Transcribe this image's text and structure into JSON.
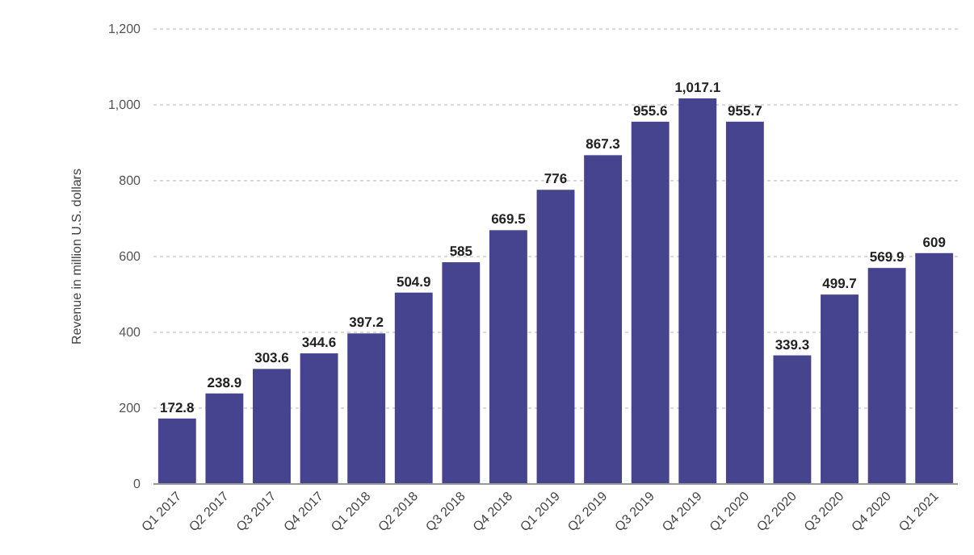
{
  "chart_data": {
    "type": "bar",
    "ylabel": "Revenue in million U.S. dollars",
    "categories": [
      "Q1 2017",
      "Q2 2017",
      "Q3 2017",
      "Q4 2017",
      "Q1 2018",
      "Q2 2018",
      "Q3 2018",
      "Q4 2018",
      "Q1 2019",
      "Q2 2019",
      "Q3 2019",
      "Q4 2019",
      "Q1 2020",
      "Q2 2020",
      "Q3 2020",
      "Q4 2020",
      "Q1 2021"
    ],
    "values": [
      172.8,
      238.9,
      303.6,
      344.6,
      397.2,
      504.9,
      585,
      669.5,
      776,
      867.3,
      955.6,
      1017.1,
      955.7,
      339.3,
      499.7,
      569.9,
      609
    ],
    "value_labels": [
      "172.8",
      "238.9",
      "303.6",
      "344.6",
      "397.2",
      "504.9",
      "585",
      "669.5",
      "776",
      "867.3",
      "955.6",
      "1,017.1",
      "955.7",
      "339.3",
      "499.7",
      "569.9",
      "609"
    ],
    "color": "#46448f",
    "ylim": [
      0,
      1200
    ],
    "yticks": [
      0,
      200,
      400,
      600,
      800,
      {
        "value": 1000,
        "label": "1,000"
      },
      {
        "value": 1200,
        "label": "1,200"
      }
    ],
    "grid": "y"
  }
}
